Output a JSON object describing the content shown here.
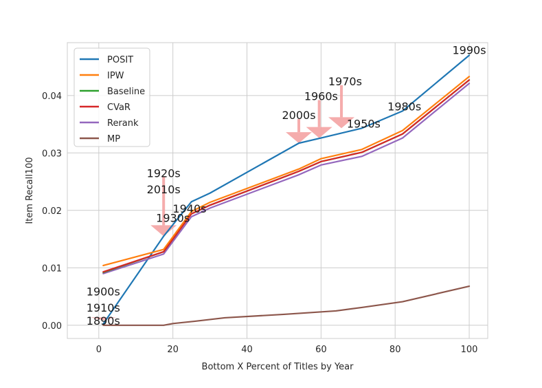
{
  "chart_data": {
    "type": "line",
    "title": "",
    "xlabel": "Bottom X Percent of Titles by Year",
    "ylabel": "Item Recall100",
    "xlim": [
      -8.5,
      105
    ],
    "ylim": [
      -0.0023,
      0.0492
    ],
    "grid": true,
    "legend_position": "top-left",
    "xticks": [
      0,
      20,
      40,
      60,
      80,
      100
    ],
    "xtick_labels": [
      "0",
      "20",
      "40",
      "60",
      "80",
      "100"
    ],
    "yticks": [
      0.0,
      0.01,
      0.02,
      0.03,
      0.04
    ],
    "ytick_labels": [
      "0.00",
      "0.01",
      "0.02",
      "0.03",
      "0.04"
    ],
    "series": [
      {
        "name": "POSIT",
        "color": "#1f77b4",
        "x": [
          1.2,
          2.0,
          17.5,
          25,
          30,
          54,
          60,
          71,
          82,
          100
        ],
        "y": [
          0.0002,
          0.001,
          0.0155,
          0.0215,
          0.023,
          0.0317,
          0.0326,
          0.0343,
          0.0373,
          0.047
        ]
      },
      {
        "name": "IPW",
        "color": "#ff7f0e",
        "x": [
          1.2,
          17.5,
          25,
          30,
          54,
          60,
          71,
          82,
          100
        ],
        "y": [
          0.0104,
          0.0132,
          0.0198,
          0.0214,
          0.0272,
          0.029,
          0.0306,
          0.0339,
          0.0433
        ]
      },
      {
        "name": "Baseline",
        "color": "#2ca02c",
        "x": [
          1.2,
          17.5,
          25,
          30,
          54,
          60,
          71,
          82,
          100
        ],
        "y": [
          0.0092,
          0.0128,
          0.0194,
          0.0209,
          0.0268,
          0.0285,
          0.0301,
          0.0333,
          0.0427
        ]
      },
      {
        "name": "CVaR",
        "color": "#d62728",
        "x": [
          1.2,
          17.5,
          25,
          30,
          54,
          60,
          71,
          82,
          100
        ],
        "y": [
          0.0093,
          0.0128,
          0.0194,
          0.0209,
          0.0268,
          0.0285,
          0.0301,
          0.0333,
          0.0427
        ]
      },
      {
        "name": "Rerank",
        "color": "#9467bd",
        "x": [
          1.2,
          17.5,
          25,
          30,
          54,
          60,
          71,
          82,
          100
        ],
        "y": [
          0.009,
          0.0124,
          0.0189,
          0.0204,
          0.0262,
          0.0279,
          0.0294,
          0.0326,
          0.0421
        ]
      },
      {
        "name": "MP",
        "color": "#8c564b",
        "x": [
          1.2,
          10,
          17.5,
          20,
          26,
          34,
          50,
          64,
          71,
          82,
          100
        ],
        "y": [
          0.0,
          0.0,
          0.0,
          0.0003,
          0.0007,
          0.0013,
          0.0019,
          0.0025,
          0.0031,
          0.0041,
          0.0068
        ]
      }
    ],
    "annotations": [
      {
        "text": "1890s",
        "x": 1.2,
        "y": 0.0001
      },
      {
        "text": "1900s",
        "x": 1.2,
        "y": 0.0052
      },
      {
        "text": "1910s",
        "x": 1.2,
        "y": 0.0024
      },
      {
        "text": "1920s",
        "x": 17.5,
        "y": 0.0258
      },
      {
        "text": "2010s",
        "x": 17.5,
        "y": 0.023
      },
      {
        "text": "1940s",
        "x": 24.5,
        "y": 0.0196
      },
      {
        "text": "1930s",
        "x": 20.0,
        "y": 0.018
      },
      {
        "text": "2000s",
        "x": 54.0,
        "y": 0.0359
      },
      {
        "text": "1960s",
        "x": 60.0,
        "y": 0.0392
      },
      {
        "text": "1970s",
        "x": 66.5,
        "y": 0.0418
      },
      {
        "text": "1950s",
        "x": 71.5,
        "y": 0.0344
      },
      {
        "text": "1980s",
        "x": 82.5,
        "y": 0.0374
      },
      {
        "text": "1990s",
        "x": 100.0,
        "y": 0.0472
      }
    ],
    "arrows": [
      {
        "x": 17.5,
        "y_from": 0.0258,
        "y_to": 0.0155
      },
      {
        "x": 54.0,
        "y_from": 0.0359,
        "y_to": 0.0317
      },
      {
        "x": 59.5,
        "y_from": 0.0392,
        "y_to": 0.0326
      },
      {
        "x": 65.5,
        "y_from": 0.0418,
        "y_to": 0.0343
      },
      {
        "x": 1.2,
        "y_from": 0.001,
        "y_to": 0.0009
      }
    ]
  }
}
